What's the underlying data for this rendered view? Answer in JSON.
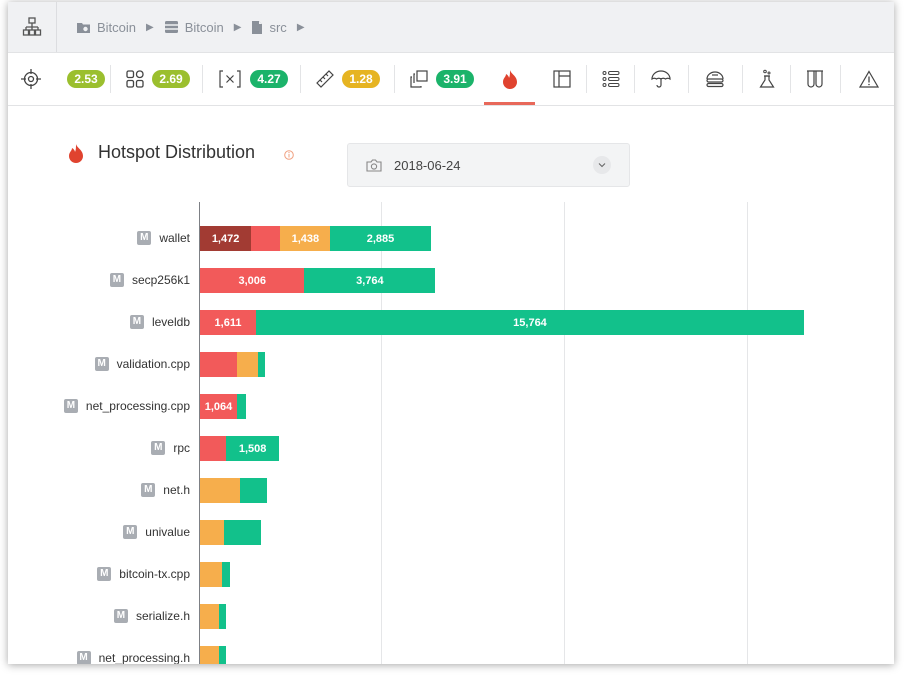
{
  "breadcrumb": {
    "items": [
      "Bitcoin",
      "Bitcoin",
      "src"
    ]
  },
  "toolbar": {
    "metrics": [
      {
        "icon": "target-icon",
        "value": "2.53",
        "color": "#9bbf2e"
      },
      {
        "icon": "modules-icon",
        "value": "2.69",
        "color": "#9bbf2e"
      },
      {
        "icon": "variable-icon",
        "value": "4.27",
        "color": "#1bb36a"
      },
      {
        "icon": "ruler-icon",
        "value": "1.28",
        "color": "#e6b422"
      },
      {
        "icon": "copies-icon",
        "value": "3.91",
        "color": "#1bb36a"
      }
    ],
    "views": [
      "flame-icon",
      "layout-icon",
      "list-icon",
      "umbrella-icon",
      "stack-icon",
      "flask-icon",
      "test-tubes-icon",
      "warning-icon"
    ],
    "active_view": "flame-icon"
  },
  "panel": {
    "title": "Hotspot Distribution",
    "date": "2018-06-24"
  },
  "colors": {
    "dark_red": "#a23b33",
    "red": "#f25a5a",
    "orange": "#f6ae4c",
    "green": "#12c18b"
  },
  "chart_data": {
    "type": "bar",
    "orientation": "horizontal",
    "stacked": true,
    "xlim": [
      0,
      21000
    ],
    "grid": true,
    "categories": [
      "wallet",
      "secp256k1",
      "leveldb",
      "validation.cpp",
      "net_processing.cpp",
      "rpc",
      "net.h",
      "univalue",
      "bitcoin-tx.cpp",
      "serialize.h",
      "net_processing.h"
    ],
    "series": [
      {
        "color": "#a23b33",
        "values": [
          1472,
          0,
          0,
          0,
          0,
          0,
          0,
          0,
          0,
          0,
          0
        ]
      },
      {
        "color": "#f25a5a",
        "values": [
          840,
          3006,
          1611,
          1050,
          1064,
          760,
          0,
          0,
          0,
          0,
          0
        ]
      },
      {
        "color": "#f6ae4c",
        "values": [
          1438,
          0,
          0,
          630,
          0,
          0,
          1160,
          680,
          620,
          540,
          560
        ]
      },
      {
        "color": "#12c18b",
        "values": [
          2885,
          3764,
          15764,
          200,
          270,
          1508,
          760,
          1070,
          230,
          200,
          190
        ]
      }
    ],
    "data_labels": [
      [
        "1,472",
        "",
        "1,438",
        "2,885"
      ],
      [
        "",
        "3,006",
        "",
        "3,764"
      ],
      [
        "",
        "1,611",
        "",
        "15,764"
      ],
      [
        "",
        "",
        "",
        ""
      ],
      [
        "",
        "1,064",
        "",
        ""
      ],
      [
        "",
        "",
        "",
        "1,508"
      ],
      [
        "",
        "",
        "",
        ""
      ],
      [
        "",
        "",
        "",
        ""
      ],
      [
        "",
        "",
        "",
        ""
      ],
      [
        "",
        "",
        "",
        ""
      ],
      [
        "",
        "",
        "",
        ""
      ]
    ]
  }
}
